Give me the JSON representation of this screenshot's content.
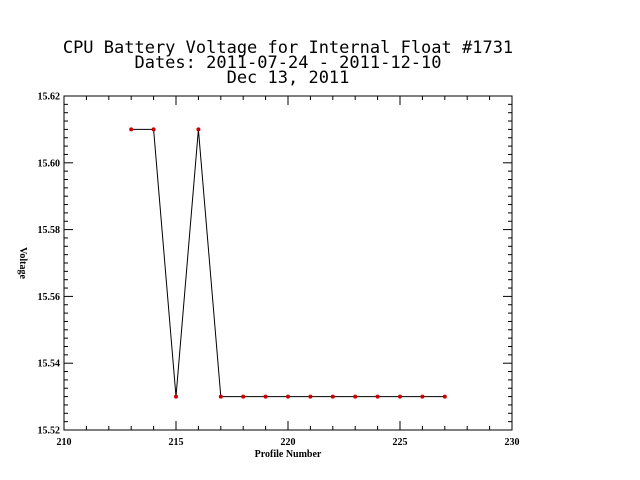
{
  "chart_data": {
    "type": "line",
    "title_lines": [
      "CPU Battery Voltage for Internal Float #1731",
      "Dates:  2011-07-24 -  2011-12-10",
      "Dec 13, 2011"
    ],
    "xlabel": "Profile Number",
    "ylabel": "Voltage",
    "xlim": [
      210,
      230
    ],
    "ylim": [
      15.52,
      15.62
    ],
    "x_ticks": [
      210,
      215,
      220,
      225,
      230
    ],
    "x_tick_labels": [
      "210",
      "215",
      "220",
      "225",
      "230"
    ],
    "y_ticks": [
      15.52,
      15.54,
      15.56,
      15.58,
      15.6,
      15.62
    ],
    "y_tick_labels": [
      "15.52",
      "15.54",
      "15.56",
      "15.58",
      "15.60",
      "15.62"
    ],
    "grid": false,
    "series": [
      {
        "line_color": "#000000",
        "marker_color": "#cc0000",
        "x": [
          213,
          214,
          215,
          216,
          217,
          218,
          219,
          220,
          221,
          222,
          223,
          224,
          225,
          226,
          227
        ],
        "y": [
          15.61,
          15.61,
          15.53,
          15.61,
          15.53,
          15.53,
          15.53,
          15.53,
          15.53,
          15.53,
          15.53,
          15.53,
          15.53,
          15.53,
          15.53
        ]
      }
    ]
  }
}
